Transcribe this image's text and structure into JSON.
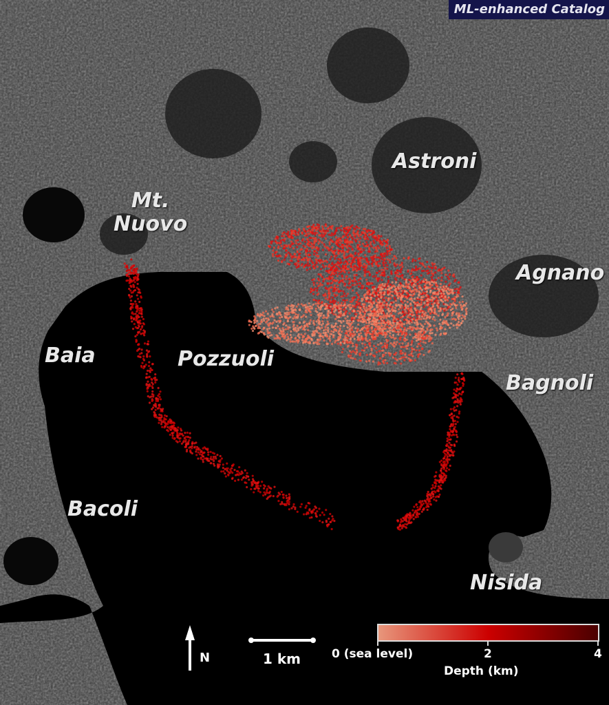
{
  "title": "ML-enhanced Catalog",
  "places": [
    "Astroni",
    "Mt.\nNuovo",
    "Agnano",
    "Pozzuoli",
    "Baia",
    "Bagnoli",
    "Bacoli",
    "Nisida"
  ],
  "north_arrow": {
    "label": "N",
    "icon": "north-arrow-icon"
  },
  "scale_bar": {
    "label": "1 km"
  },
  "colorbar": {
    "label": "Depth (km)",
    "ticks": [
      "0 (sea level)",
      "2",
      "4"
    ],
    "range": [
      0,
      4
    ],
    "colors": [
      "#e8977c",
      "#cc0000",
      "#4a0000"
    ]
  },
  "colors": {
    "sea": "#000000",
    "land": "#3a3a3a",
    "title_bg": "#14144a"
  }
}
